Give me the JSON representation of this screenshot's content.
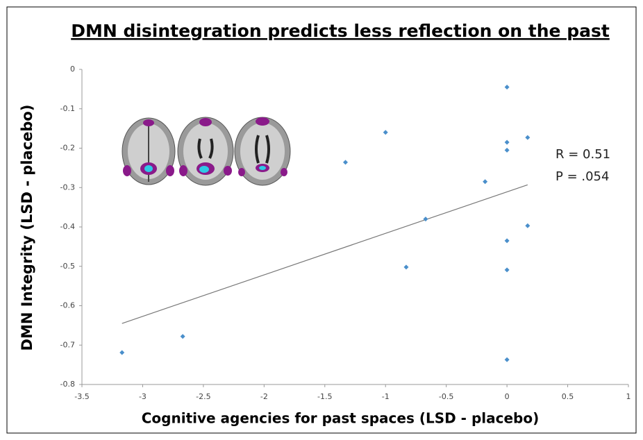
{
  "chart_data": {
    "type": "scatter",
    "title": "DMN disintegration predicts less reflection on the past",
    "x_label": "Cognitive agencies for past spaces (LSD - placebo)",
    "y_label": "DMN Integrity (LSD - placebo)",
    "annotations": [
      "R = 0.51",
      "P = .054"
    ],
    "series": [
      {
        "color": "#4a8fcb",
        "x": [
          0,
          -1.0,
          0,
          0,
          0.17,
          -1.33,
          -0.18,
          -0.67,
          0.17,
          0,
          -0.83,
          0,
          -2.67,
          -3.17,
          0
        ],
        "y": [
          -0.045,
          -0.16,
          -0.185,
          -0.205,
          -0.173,
          -0.236,
          -0.285,
          -0.38,
          -0.397,
          -0.435,
          -0.502,
          -0.509,
          -0.678,
          -0.719,
          -0.737
        ]
      }
    ],
    "trendline": {
      "color": "#777777",
      "x": [
        -3.17,
        0.17
      ],
      "y": [
        -0.645,
        -0.293
      ]
    },
    "xlim": [
      -3.5,
      1
    ],
    "xticks": [
      -3.5,
      -3,
      -2.5,
      -2,
      -1.5,
      -1,
      -0.5,
      0,
      0.5,
      1
    ],
    "ylim": [
      -0.8,
      0
    ],
    "yticks": [
      0,
      -0.1,
      -0.2,
      -0.3,
      -0.4,
      -0.5,
      -0.6,
      -0.7,
      -0.8
    ],
    "grid": false
  }
}
